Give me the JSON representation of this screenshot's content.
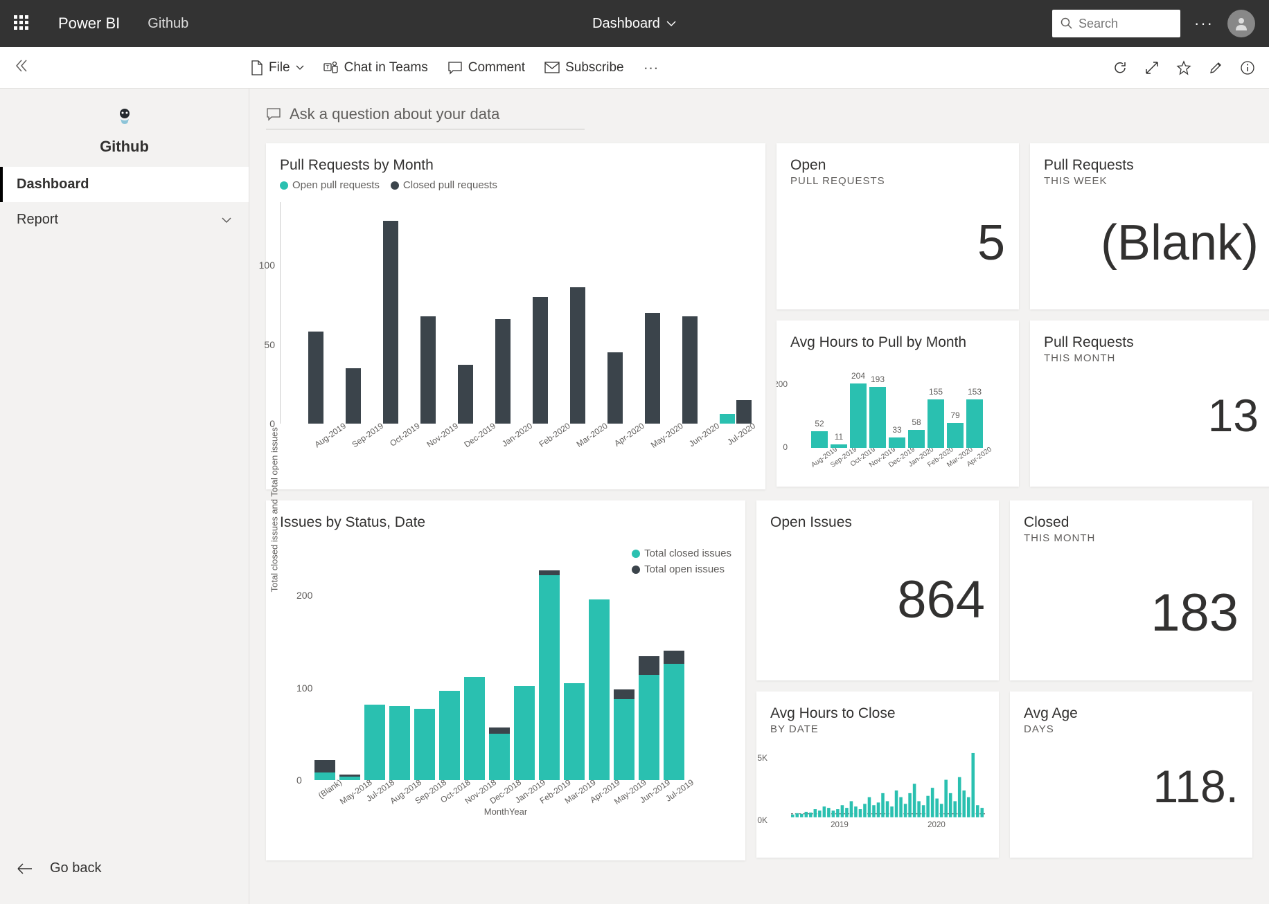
{
  "topbar": {
    "brand": "Power BI",
    "workspace": "Github",
    "center_title": "Dashboard",
    "search_placeholder": "Search"
  },
  "actions": {
    "file": "File",
    "chat": "Chat in Teams",
    "comment": "Comment",
    "subscribe": "Subscribe"
  },
  "sidebar": {
    "title": "Github",
    "nav": [
      {
        "label": "Dashboard",
        "active": true
      },
      {
        "label": "Report",
        "active": false,
        "expandable": true
      }
    ],
    "go_back": "Go back"
  },
  "qna": {
    "placeholder": "Ask a question about your data"
  },
  "colors": {
    "teal": "#2ac0b0",
    "dark": "#3b444b",
    "bg": "#ffffff",
    "grid": "#e0e0e0",
    "text": "#323130",
    "subtext": "#605e5c"
  },
  "tiles": {
    "pr_by_month": {
      "title": "Pull Requests by Month",
      "legend": [
        {
          "label": "Open pull requests",
          "color": "#2ac0b0"
        },
        {
          "label": "Closed pull requests",
          "color": "#3b444b"
        }
      ],
      "type": "grouped-bar",
      "ylim": [
        0,
        140
      ],
      "yticks": [
        0,
        50,
        100
      ],
      "categories": [
        "Aug-2019",
        "Sep-2019",
        "Oct-2019",
        "Nov-2019",
        "Dec-2019",
        "Jan-2020",
        "Feb-2020",
        "Mar-2020",
        "Apr-2020",
        "May-2020",
        "Jun-2020",
        "Jul-2020"
      ],
      "open": [
        0,
        0,
        0,
        0,
        0,
        0,
        0,
        0,
        0,
        0,
        0,
        6
      ],
      "closed": [
        58,
        35,
        128,
        68,
        37,
        66,
        80,
        86,
        45,
        70,
        68,
        15
      ]
    },
    "open_pr": {
      "title": "Open",
      "subtitle": "PULL REQUESTS",
      "value": "5"
    },
    "pr_this_week": {
      "title": "Pull Requests",
      "subtitle": "THIS WEEK",
      "value": "(Blank)"
    },
    "avg_hours_pull": {
      "title": "Avg Hours to Pull by Month",
      "type": "bar",
      "color": "#2ac0b0",
      "ylim": [
        0,
        220
      ],
      "yticks": [
        0,
        200
      ],
      "categories": [
        "Aug-2019",
        "Sep-2019",
        "Oct-2019",
        "Nov-2019",
        "Dec-2019",
        "Jan-2020",
        "Feb-2020",
        "Mar-2020",
        "Apr-2020"
      ],
      "values": [
        52,
        11,
        204,
        193,
        33,
        58,
        155,
        79,
        153
      ]
    },
    "pr_this_month": {
      "title": "Pull Requests",
      "subtitle": "THIS MONTH",
      "value": "13"
    },
    "issues_by_status": {
      "title": "Issues by Status, Date",
      "type": "stacked-bar",
      "legend": [
        {
          "label": "Total closed issues",
          "color": "#2ac0b0"
        },
        {
          "label": "Total open issues",
          "color": "#3b444b"
        }
      ],
      "y_axis_title": "Total closed issues and Total open issues",
      "x_axis_title": "MonthYear",
      "ylim": [
        0,
        240
      ],
      "yticks": [
        0,
        100,
        200
      ],
      "categories": [
        "(Blank)",
        "May-2018",
        "Jul-2018",
        "Aug-2018",
        "Sep-2018",
        "Oct-2018",
        "Nov-2018",
        "Dec-2018",
        "Jan-2019",
        "Feb-2019",
        "Mar-2019",
        "Apr-2019",
        "May-2019",
        "Jun-2019",
        "Jul-2019"
      ],
      "closed": [
        8,
        4,
        82,
        80,
        77,
        97,
        112,
        50,
        102,
        222,
        105,
        196,
        88,
        114,
        126
      ],
      "open": [
        14,
        2,
        0,
        0,
        0,
        0,
        0,
        7,
        0,
        5,
        0,
        0,
        10,
        20,
        14
      ]
    },
    "open_issues": {
      "title": "Open Issues",
      "subtitle": "",
      "value": "864"
    },
    "closed_month": {
      "title": "Closed",
      "subtitle": "THIS MONTH",
      "value": "183"
    },
    "avg_hours_close": {
      "title": "Avg Hours to Close",
      "subtitle": "BY DATE",
      "type": "column-sparkline",
      "color": "#2ac0b0",
      "yticks": [
        "0K",
        "5K"
      ],
      "xticks": [
        "2019",
        "2020"
      ],
      "values": [
        200,
        300,
        250,
        400,
        350,
        600,
        500,
        800,
        700,
        500,
        600,
        900,
        700,
        1200,
        800,
        600,
        1000,
        1500,
        900,
        1100,
        1800,
        1200,
        800,
        2000,
        1500,
        1000,
        1800,
        2500,
        1200,
        900,
        1600,
        2200,
        1400,
        1000,
        2800,
        1800,
        1200,
        3000,
        2000,
        1500,
        4800,
        900,
        700
      ]
    },
    "avg_age": {
      "title": "Avg Age",
      "subtitle": "DAYS",
      "value": "118."
    }
  }
}
